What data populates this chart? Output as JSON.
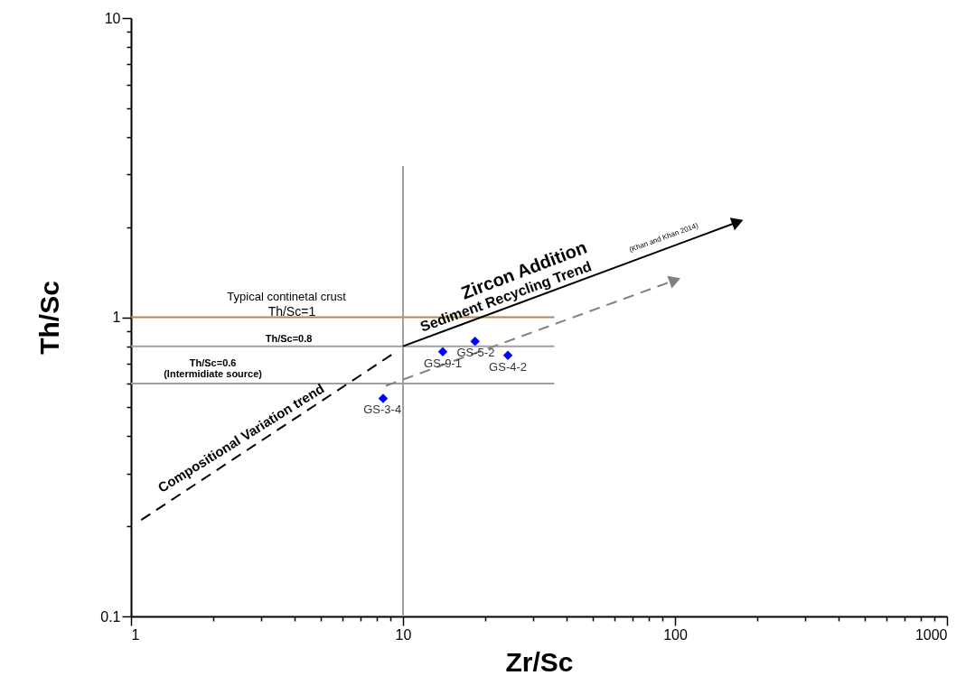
{
  "chart_data": {
    "type": "scatter",
    "xlabel": "Zr/Sc",
    "ylabel": "Th/Sc",
    "log": "xy",
    "grid": false,
    "xlim": [
      1,
      1000
    ],
    "ylim": [
      0.1,
      10
    ],
    "xticks": [
      1,
      {
        "value": 2,
        "label": null
      },
      {
        "value": 3,
        "label": null
      },
      {
        "value": 4,
        "label": null
      },
      {
        "value": 5,
        "label": null
      },
      {
        "value": 6,
        "label": null
      },
      {
        "value": 7,
        "label": null
      },
      {
        "value": 8,
        "label": null
      },
      {
        "value": 9,
        "label": null
      },
      10,
      {
        "value": 20,
        "label": null
      },
      {
        "value": 30,
        "label": null
      },
      {
        "value": 40,
        "label": null
      },
      {
        "value": 50,
        "label": null
      },
      {
        "value": 60,
        "label": null
      },
      {
        "value": 70,
        "label": null
      },
      {
        "value": 80,
        "label": null
      },
      {
        "value": 90,
        "label": null
      },
      100,
      {
        "value": 200,
        "label": null
      },
      {
        "value": 300,
        "label": null
      },
      {
        "value": 400,
        "label": null
      },
      {
        "value": 500,
        "label": null
      },
      {
        "value": 600,
        "label": null
      },
      {
        "value": 700,
        "label": null
      },
      {
        "value": 800,
        "label": null
      },
      {
        "value": 900,
        "label": null
      },
      1000
    ],
    "yticks": [
      0.1,
      {
        "value": 0.2,
        "label": null
      },
      {
        "value": 0.3,
        "label": null
      },
      {
        "value": 0.4,
        "label": null
      },
      {
        "value": 0.5,
        "label": null
      },
      {
        "value": 0.6,
        "label": null
      },
      {
        "value": 0.7,
        "label": null
      },
      {
        "value": 0.8,
        "label": null
      },
      {
        "value": 0.9,
        "label": null
      },
      1,
      {
        "value": 2,
        "label": null
      },
      {
        "value": 3,
        "label": null
      },
      {
        "value": 4,
        "label": null
      },
      {
        "value": 5,
        "label": null
      },
      {
        "value": 6,
        "label": null
      },
      {
        "value": 7,
        "label": null
      },
      {
        "value": 8,
        "label": null
      },
      {
        "value": 9,
        "label": null
      },
      10
    ],
    "series": [
      {
        "color": "#0000ff",
        "marker": "diamond",
        "x": [
          8.45,
          14,
          18.4,
          24.3
        ],
        "values": [
          0.535,
          0.767,
          0.83,
          0.746
        ]
      },
      {
        "type": "line",
        "color": "#b08850",
        "line_style": "solid",
        "x": [
          1,
          36
        ],
        "values": [
          1,
          1
        ]
      },
      {
        "type": "line",
        "color": "#a0a0a0",
        "line_style": "solid",
        "x": [
          1,
          36
        ],
        "values": [
          0.8,
          0.8
        ]
      },
      {
        "type": "line",
        "color": "#a0a0a0",
        "line_style": "solid",
        "x": [
          1,
          36
        ],
        "values": [
          0.6,
          0.6
        ]
      },
      {
        "type": "line",
        "color": "#a0a0a0",
        "line_style": "solid",
        "x": [
          10,
          10
        ],
        "values": [
          0.1,
          3.2
        ]
      },
      {
        "type": "line",
        "color": "#000000",
        "line_style": "dashed",
        "x": [
          1.09,
          9.3
        ],
        "values": [
          0.21,
          0.76
        ]
      },
      {
        "type": "line",
        "color": "#000000",
        "line_style": "solid",
        "x": [
          10,
          170
        ],
        "values": [
          0.8,
          2.08
        ]
      },
      {
        "type": "line",
        "color": "#808080",
        "line_style": "dashed",
        "x": [
          8.65,
          100
        ],
        "values": [
          0.59,
          1.33
        ]
      }
    ],
    "annotations": [
      "Typical continetal crust",
      "Th/Sc=1",
      "Th/Sc=0.8",
      "Th/Sc=0.6",
      "(Intermidiate source)",
      "Compositional Variation trend",
      "Zircon Addition",
      "Sediment Recycling Trend",
      "(Khan and Khan 2014)",
      "GS-3-4",
      "GS-9-1",
      "GS-5-2",
      "GS-4-2"
    ]
  }
}
